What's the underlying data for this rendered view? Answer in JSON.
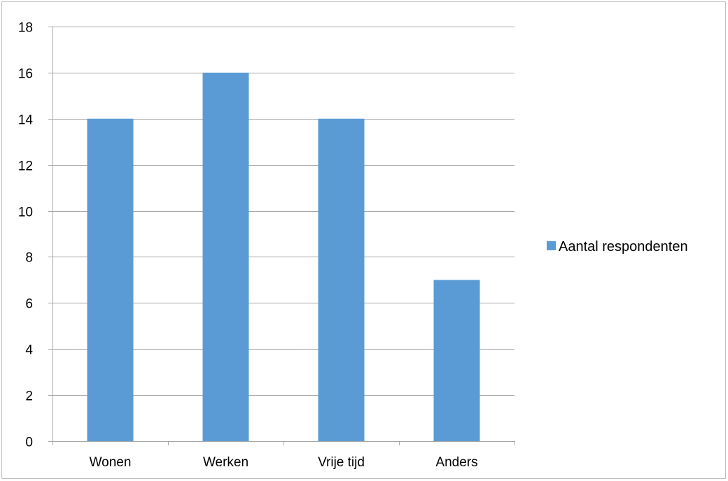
{
  "chart_data": {
    "type": "bar",
    "title": "",
    "xlabel": "",
    "ylabel": "",
    "categories": [
      "Wonen",
      "Werken",
      "Vrije tijd",
      "Anders"
    ],
    "series": [
      {
        "name": "Aantal respondenten",
        "values": [
          14,
          16,
          14,
          7
        ],
        "color": "#5b9bd5"
      }
    ],
    "ylim": [
      0,
      18
    ],
    "yticks": [
      0,
      2,
      4,
      6,
      8,
      10,
      12,
      14,
      16,
      18
    ],
    "grid": true,
    "gridColor": "#a6a6a6",
    "legend": {
      "position": "right"
    }
  }
}
